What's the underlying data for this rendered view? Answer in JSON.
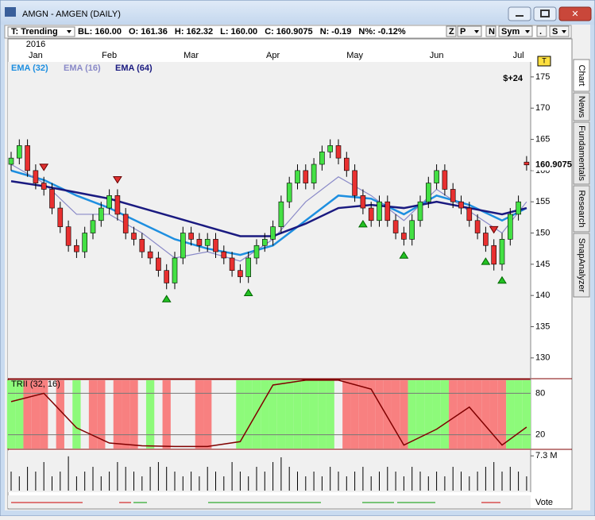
{
  "window": {
    "title": "AMGN - AMGEN (DAILY)"
  },
  "toolbar": {
    "mode": "T: Trending",
    "quote": [
      {
        "label": "BL:",
        "value": "160.00"
      },
      {
        "label": "O:",
        "value": "161.36"
      },
      {
        "label": "H:",
        "value": "162.32"
      },
      {
        "label": "L:",
        "value": "160.00"
      },
      {
        "label": "C:",
        "value": "160.9075"
      },
      {
        "label": "N:",
        "value": "-0.19"
      },
      {
        "label": "N%:",
        "value": "-0.12%"
      }
    ],
    "buttons": [
      "Z",
      "P",
      "N",
      "Sym",
      ".",
      "S"
    ]
  },
  "tabs": [
    "Chart",
    "News",
    "Fundamentals",
    "Research",
    "SnapAnalyzer"
  ],
  "footer": {
    "label": "Vote"
  },
  "chart_data": [
    {
      "type": "candlestick",
      "year_label": "2016",
      "months": [
        "Jan",
        "Feb",
        "Mar",
        "Apr",
        "May",
        "Jun",
        "Jul"
      ],
      "month_starts": [
        3,
        12,
        22,
        32,
        42,
        52,
        62
      ],
      "open": [
        161,
        162,
        164,
        160,
        158,
        157,
        154,
        151,
        148,
        147,
        150,
        152,
        154,
        156,
        153,
        150,
        149,
        147,
        146,
        144,
        142,
        146,
        150,
        149,
        148,
        149,
        147,
        146,
        144,
        143,
        146,
        148,
        149,
        151,
        155,
        158,
        160,
        158,
        161,
        163,
        164,
        162,
        160,
        156,
        154,
        152,
        155,
        152,
        150,
        149,
        152,
        155,
        158,
        160,
        157,
        155,
        154,
        152,
        150,
        148,
        145,
        149,
        153,
        161.36
      ],
      "high": [
        163,
        165,
        165,
        161,
        159,
        158,
        155,
        152,
        149,
        151,
        153,
        155,
        157,
        157,
        154,
        151,
        150,
        148,
        147,
        145,
        147,
        151,
        151,
        150,
        150,
        150,
        148,
        147,
        145,
        147,
        149,
        150,
        152,
        156,
        159,
        161,
        161,
        162,
        164,
        165,
        165,
        163,
        161,
        157,
        155,
        156,
        156,
        153,
        151,
        153,
        156,
        159,
        161,
        161,
        158,
        156,
        155,
        153,
        151,
        149,
        150,
        154,
        156,
        162.32
      ],
      "low": [
        160,
        161,
        159,
        157,
        156,
        153,
        150,
        147,
        146,
        146,
        149,
        151,
        153,
        152,
        149,
        148,
        146,
        145,
        143,
        141,
        141,
        145,
        148,
        147,
        147,
        146,
        145,
        143,
        142,
        142,
        145,
        147,
        148,
        150,
        154,
        157,
        157,
        157,
        160,
        162,
        161,
        159,
        155,
        153,
        151,
        151,
        151,
        149,
        148,
        148,
        151,
        154,
        157,
        156,
        154,
        153,
        151,
        149,
        147,
        144,
        144,
        148,
        152,
        160
      ],
      "close": [
        162,
        164,
        160,
        158,
        157,
        154,
        151,
        148,
        147,
        150,
        152,
        154,
        156,
        153,
        150,
        149,
        147,
        146,
        144,
        142,
        146,
        150,
        149,
        148,
        149,
        147,
        146,
        144,
        143,
        146,
        148,
        149,
        151,
        155,
        158,
        160,
        158,
        161,
        163,
        164,
        162,
        160,
        156,
        154,
        152,
        155,
        152,
        150,
        149,
        152,
        155,
        158,
        160,
        157,
        155,
        154,
        152,
        150,
        148,
        145,
        149,
        153,
        155,
        160.9075
      ],
      "ylim": [
        126.8,
        177.4
      ],
      "yticks": [
        130,
        135,
        140,
        145,
        150,
        155,
        160,
        165,
        170,
        175
      ],
      "indicator_index": [
        0,
        4,
        8,
        12,
        16,
        20,
        24,
        28,
        32,
        36,
        40,
        44,
        48,
        52,
        56,
        60,
        63
      ],
      "series": [
        {
          "name": "EMA (32)",
          "color": "#1e8fe0",
          "values": [
            160,
            158.5,
            156,
            154,
            151.5,
            149,
            147.5,
            146.5,
            148,
            152,
            156,
            155.5,
            153,
            156,
            154.5,
            152,
            154
          ]
        },
        {
          "name": "EMA (16)",
          "color": "#8a8ac8",
          "values": [
            161,
            158,
            153,
            153,
            150,
            146,
            147,
            145.5,
            149,
            155,
            159,
            156,
            152,
            157,
            153.5,
            150,
            155
          ]
        },
        {
          "name": "EMA (64)",
          "color": "#1a1a80",
          "values": [
            158.3,
            157.5,
            156.5,
            155.5,
            154,
            152.5,
            151,
            149.5,
            149.5,
            151.5,
            154,
            154.5,
            154,
            155,
            154,
            153,
            154
          ]
        }
      ],
      "buy_signals": [
        19,
        29,
        43,
        48,
        58,
        60
      ],
      "sell_signals": [
        4,
        13,
        59
      ],
      "profit_label": "$+24",
      "marker_label": "T"
    },
    {
      "type": "line",
      "title": "TRII (32, 16)",
      "color": "#800000",
      "values": [
        68,
        80,
        30,
        8,
        4,
        3,
        3,
        10,
        92,
        99,
        99,
        86,
        5,
        28,
        60,
        5,
        31
      ],
      "ylim": [
        0,
        100
      ],
      "yticks": [
        80,
        20
      ],
      "zones": "ggrrrnrngnrrnrrrngnrnnnrrnnnggggggggggggnrrrrrrrrgggggrrrrrrrggg"
    },
    {
      "type": "bar",
      "color": "#000000",
      "values": [
        4,
        3,
        5,
        4,
        6,
        3,
        4,
        7.2,
        3,
        4,
        5,
        3,
        4,
        6,
        5,
        4,
        3,
        5,
        6,
        5,
        4,
        3,
        4,
        3,
        5,
        4,
        3,
        6,
        4,
        3,
        5,
        4,
        6,
        7,
        5,
        4,
        3,
        4,
        3,
        5,
        4,
        3,
        4,
        5,
        3,
        4,
        5,
        4,
        3,
        5,
        4,
        3,
        4,
        3,
        5,
        4,
        3,
        4,
        5,
        6,
        4,
        5,
        4,
        3
      ],
      "ylim": [
        0,
        8
      ],
      "yticks": [
        {
          "value": 7.3,
          "label": "7.3 M"
        }
      ]
    }
  ]
}
